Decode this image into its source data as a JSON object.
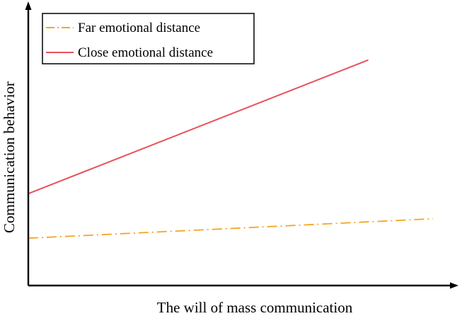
{
  "chart_data": {
    "type": "line",
    "title": "",
    "xlabel": "The will of mass communication",
    "ylabel": "Communication behavior",
    "x_ticks_shown": false,
    "y_ticks_shown": false,
    "grid": false,
    "legend_position": "top-left",
    "series": [
      {
        "name": "Far emotional distance",
        "color": "#f5a623",
        "line_style": "dash-dot",
        "points": [
          {
            "x": 0.0,
            "y": 0.17
          },
          {
            "x": 1.0,
            "y": 0.24
          }
        ]
      },
      {
        "name": "Close emotional distance",
        "color": "#e8505b",
        "line_style": "solid",
        "points": [
          {
            "x": 0.0,
            "y": 0.33
          },
          {
            "x": 0.84,
            "y": 0.81
          }
        ]
      }
    ]
  }
}
